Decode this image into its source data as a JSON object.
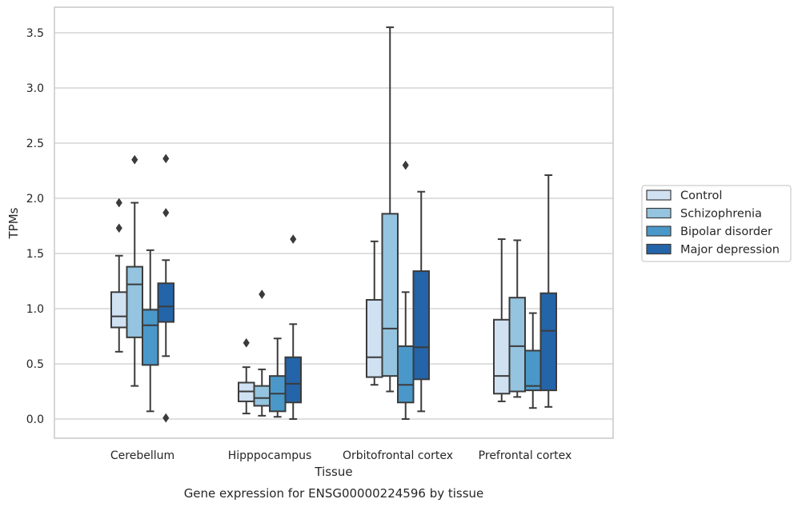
{
  "chart_data": {
    "type": "boxplot",
    "caption": "Gene expression for ENSG00000224596 by tissue",
    "xlabel": "Tissue",
    "ylabel": "TPMs",
    "ylim": [
      -0.17,
      3.7
    ],
    "yticks": [
      0.0,
      0.5,
      1.0,
      1.5,
      2.0,
      2.5,
      3.0,
      3.5
    ],
    "ytick_labels": [
      "0.0",
      "0.5",
      "1.0",
      "1.5",
      "2.0",
      "2.5",
      "3.0",
      "3.5"
    ],
    "grid": "horizontal",
    "legend_placement": "center-right outside",
    "categories": [
      "Cerebellum",
      "Hipppocampus",
      "Orbitofrontal cortex",
      "Prefrontal cortex"
    ],
    "series": [
      {
        "name": "Control",
        "color": "#d0e1f2",
        "boxes": [
          {
            "whislo": 0.61,
            "q1": 0.83,
            "med": 0.93,
            "q3": 1.15,
            "whishi": 1.48,
            "fliers": [
              1.73,
              1.96
            ]
          },
          {
            "whislo": 0.05,
            "q1": 0.16,
            "med": 0.25,
            "q3": 0.33,
            "whishi": 0.47,
            "fliers": [
              0.69
            ]
          },
          {
            "whislo": 0.31,
            "q1": 0.38,
            "med": 0.56,
            "q3": 1.08,
            "whishi": 1.61,
            "fliers": []
          },
          {
            "whislo": 0.16,
            "q1": 0.23,
            "med": 0.39,
            "q3": 0.9,
            "whishi": 1.63,
            "fliers": []
          }
        ]
      },
      {
        "name": "Schizophrenia",
        "color": "#94c4df",
        "boxes": [
          {
            "whislo": 0.3,
            "q1": 0.74,
            "med": 1.22,
            "q3": 1.38,
            "whishi": 1.96,
            "fliers": [
              2.35
            ]
          },
          {
            "whislo": 0.03,
            "q1": 0.12,
            "med": 0.19,
            "q3": 0.3,
            "whishi": 0.45,
            "fliers": [
              1.13
            ]
          },
          {
            "whislo": 0.25,
            "q1": 0.39,
            "med": 0.82,
            "q3": 1.86,
            "whishi": 3.55,
            "fliers": []
          },
          {
            "whislo": 0.2,
            "q1": 0.25,
            "med": 0.66,
            "q3": 1.1,
            "whishi": 1.62,
            "fliers": []
          }
        ]
      },
      {
        "name": "Bipolar disorder",
        "color": "#4a98c9",
        "boxes": [
          {
            "whislo": 0.07,
            "q1": 0.49,
            "med": 0.85,
            "q3": 0.99,
            "whishi": 1.53,
            "fliers": []
          },
          {
            "whislo": 0.02,
            "q1": 0.07,
            "med": 0.23,
            "q3": 0.39,
            "whishi": 0.73,
            "fliers": []
          },
          {
            "whislo": 0.0,
            "q1": 0.15,
            "med": 0.31,
            "q3": 0.66,
            "whishi": 1.15,
            "fliers": [
              2.3
            ]
          },
          {
            "whislo": 0.1,
            "q1": 0.26,
            "med": 0.3,
            "q3": 0.62,
            "whishi": 0.96,
            "fliers": []
          }
        ]
      },
      {
        "name": "Major depression",
        "color": "#2464a8",
        "boxes": [
          {
            "whislo": 0.57,
            "q1": 0.88,
            "med": 1.02,
            "q3": 1.23,
            "whishi": 1.44,
            "fliers": [
              1.87,
              2.36,
              0.01
            ]
          },
          {
            "whislo": 0.0,
            "q1": 0.15,
            "med": 0.32,
            "q3": 0.56,
            "whishi": 0.86,
            "fliers": [
              1.63
            ]
          },
          {
            "whislo": 0.07,
            "q1": 0.36,
            "med": 0.65,
            "q3": 1.34,
            "whishi": 2.06,
            "fliers": []
          },
          {
            "whislo": 0.11,
            "q1": 0.26,
            "med": 0.8,
            "q3": 1.14,
            "whishi": 2.21,
            "fliers": []
          }
        ]
      }
    ],
    "colors": {
      "grid": "#cccccc",
      "frame": "#cccccc",
      "line": "#3b3b3b",
      "text": "#262626"
    }
  }
}
